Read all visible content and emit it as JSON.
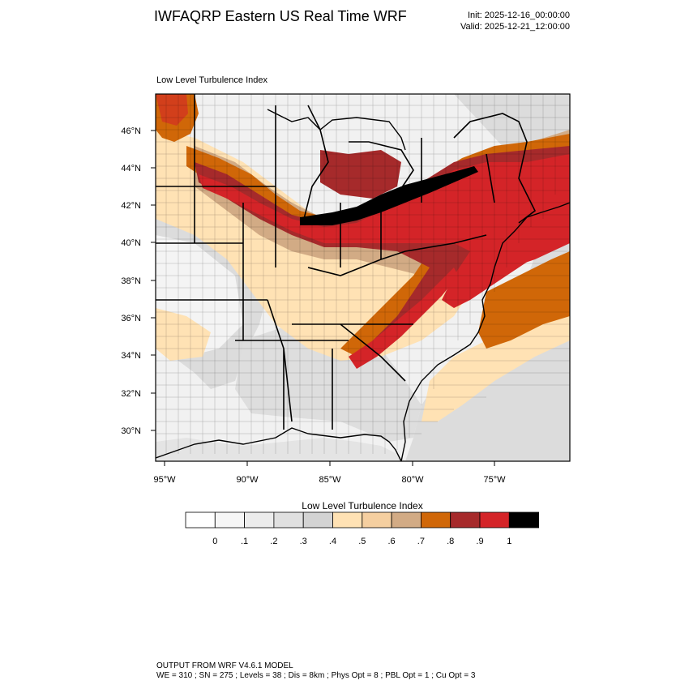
{
  "header": {
    "title": "IWFAQRP Eastern US Real Time WRF",
    "init": "Init: 2025-12-16_00:00:00",
    "valid": "Valid: 2025-12-21_12:00:00"
  },
  "panel": {
    "label": "Low Level Turbulence Index"
  },
  "map": {
    "lat_ticks": [
      "46°N",
      "44°N",
      "42°N",
      "40°N",
      "38°N",
      "36°N",
      "34°N",
      "32°N",
      "30°N"
    ],
    "lon_ticks": [
      "95°W",
      "90°W",
      "85°W",
      "80°W",
      "75°W"
    ]
  },
  "colorbar": {
    "title": "Low Level Turbulence Index",
    "labels": [
      "0",
      ".1",
      ".2",
      ".3",
      ".4",
      ".5",
      ".6",
      ".7",
      ".8",
      ".9",
      "1"
    ],
    "colors": [
      "#ffffff",
      "#f6f6f6",
      "#ececec",
      "#e0e0e0",
      "#d3d3d3",
      "#ffe2b4",
      "#f5cfa0",
      "#d2ab85",
      "#d06708",
      "#a62a2b",
      "#d42428",
      "#000000"
    ]
  },
  "footer": {
    "line1": "OUTPUT FROM WRF V4.6.1 MODEL",
    "line2": "WE = 310 ; SN = 275 ; Levels = 38 ; Dis = 8km ; Phys Opt = 8 ; PBL Opt = 1 ; Cu Opt = 3"
  }
}
